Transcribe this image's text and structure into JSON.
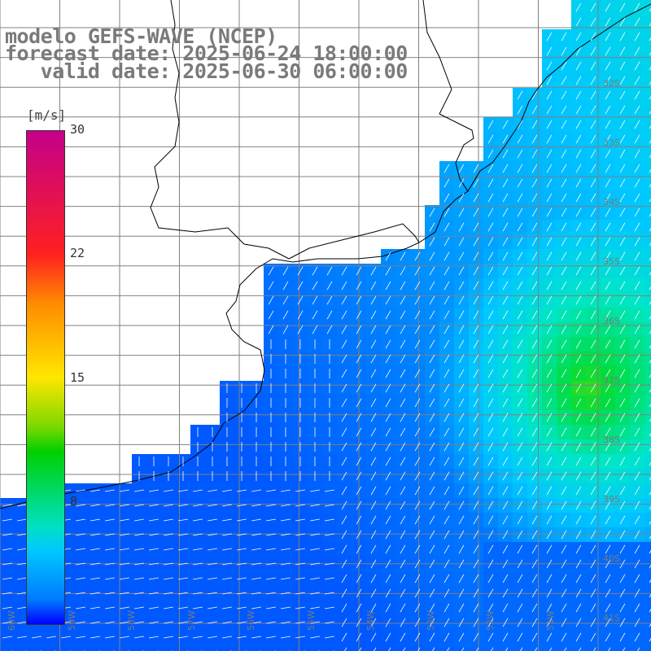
{
  "title": {
    "line1": "modelo GEFS-WAVE (NCEP)",
    "line2": "forecast date: 2025-06-24 18:00:00",
    "line3": "   valid date: 2025-06-30 06:00:00"
  },
  "legend": {
    "unit": "[m/s]",
    "ticks": [
      "30",
      "22",
      "15",
      "8"
    ],
    "colors": [
      "#c4008a",
      "#ff2020",
      "#ff8c00",
      "#ffe600",
      "#00d000",
      "#00e0c0",
      "#00c8ff",
      "#007bff",
      "#0000ff"
    ]
  },
  "lat_labels": [
    "32S",
    "33S",
    "34S",
    "35S",
    "36S",
    "37S",
    "38S",
    "39S",
    "40S",
    "41S"
  ],
  "lon_labels": [
    "60W",
    "59W",
    "58W",
    "57W",
    "56W",
    "55W",
    "54W",
    "53W",
    "52W",
    "51W"
  ],
  "map": {
    "land_color": "#ffffff",
    "grid_color": "#808080",
    "coast_color": "#000000",
    "wind_speed_range_ms": [
      0,
      30
    ]
  }
}
